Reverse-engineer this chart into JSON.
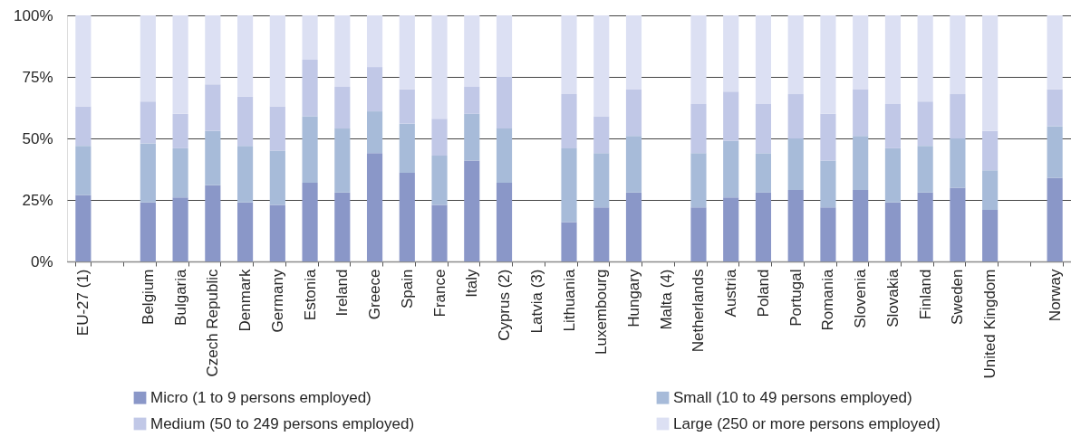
{
  "chart_data": {
    "type": "bar",
    "stacked": true,
    "categories": [
      "EU-27 (1)",
      null,
      "Belgium",
      "Bulgaria",
      "Czech Republic",
      "Denmark",
      "Germany",
      "Estonia",
      "Ireland",
      "Greece",
      "Spain",
      "France",
      "Italy",
      "Cyprus (2)",
      "Latvia (3)",
      "Lithuania",
      "Luxembourg",
      "Hungary",
      "Malta (4)",
      "Netherlands",
      "Austria",
      "Poland",
      "Portugal",
      "Romania",
      "Slovenia",
      "Slovakia",
      "Finland",
      "Sweden",
      "United Kingdom",
      null,
      "Norway"
    ],
    "series": [
      {
        "name": "Micro (1 to 9 persons employed)",
        "color": "#8a97c8",
        "values": [
          27,
          null,
          24,
          26,
          31,
          24,
          23,
          32,
          28,
          44,
          36,
          23,
          41,
          32,
          null,
          16,
          22,
          28,
          null,
          22,
          26,
          28,
          29,
          22,
          29,
          24,
          28,
          30,
          21,
          null,
          34
        ]
      },
      {
        "name": "Small (10 to 49 persons employed)",
        "color": "#a7bbd9",
        "values": [
          20,
          null,
          24,
          20,
          22,
          23,
          22,
          27,
          26,
          17,
          20,
          20,
          19,
          22,
          null,
          30,
          22,
          23,
          null,
          22,
          23,
          16,
          21,
          19,
          22,
          22,
          19,
          20,
          16,
          null,
          21
        ]
      },
      {
        "name": "Medium (50 to 249 persons employed)",
        "color": "#c1c8e7",
        "values": [
          16,
          null,
          17,
          14,
          19,
          20,
          18,
          23,
          17,
          18,
          14,
          15,
          11,
          21,
          null,
          22,
          15,
          19,
          null,
          20,
          20,
          20,
          18,
          19,
          19,
          18,
          18,
          18,
          16,
          null,
          15
        ]
      },
      {
        "name": "Large (250 or more persons employed)",
        "color": "#dce0f3",
        "values": [
          37,
          null,
          35,
          40,
          28,
          33,
          37,
          18,
          29,
          21,
          30,
          42,
          29,
          25,
          null,
          32,
          41,
          30,
          null,
          36,
          31,
          36,
          32,
          40,
          30,
          36,
          35,
          32,
          47,
          null,
          30
        ]
      }
    ],
    "ylim": [
      0,
      100
    ],
    "yticks": [
      {
        "value": 0,
        "label": "0%"
      },
      {
        "value": 25,
        "label": "25%"
      },
      {
        "value": 50,
        "label": "50%"
      },
      {
        "value": 75,
        "label": "75%"
      },
      {
        "value": 100,
        "label": "100%"
      }
    ],
    "grid": "y",
    "legend": "bottom"
  }
}
